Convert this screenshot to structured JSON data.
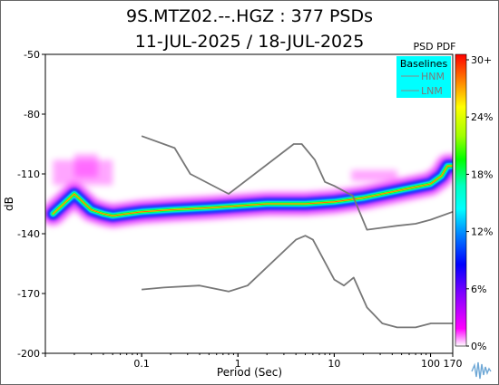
{
  "chart_data": {
    "type": "heatmap",
    "title_line1": "9S.MTZ02.--.HGZ : 377 PSDs",
    "title_line2": "11-JUL-2025 / 18-JUL-2025",
    "xlabel": "Period (Sec)",
    "ylabel": "dB",
    "x_scale": "log",
    "xlim": [
      0.01,
      170
    ],
    "ylim": [
      -200,
      -50
    ],
    "x_ticks": [
      {
        "v": 0.1,
        "label": "0.1"
      },
      {
        "v": 1,
        "label": "1"
      },
      {
        "v": 10,
        "label": "10"
      },
      {
        "v": 100,
        "label": "100"
      },
      {
        "v": 170,
        "label": "170"
      }
    ],
    "y_ticks": [
      {
        "v": -50,
        "label": "-50"
      },
      {
        "v": -80,
        "label": "-80"
      },
      {
        "v": -110,
        "label": "-110"
      },
      {
        "v": -140,
        "label": "-140"
      },
      {
        "v": -170,
        "label": "-170"
      },
      {
        "v": -200,
        "label": "-200"
      }
    ],
    "colorbar": {
      "title": "PSD PDF",
      "ticks": [
        "30+",
        "24%",
        "18%",
        "12%",
        "6%",
        "0%"
      ],
      "colors": [
        "#ff0000",
        "#ff8000",
        "#ffff00",
        "#a0ff00",
        "#00ff00",
        "#00ffc0",
        "#00ffff",
        "#0080ff",
        "#0000ff",
        "#8000ff",
        "#ff00ff",
        "#ffffff"
      ]
    },
    "legend": {
      "title": "Baselines",
      "items": [
        "HNM",
        "LNM"
      ],
      "background": "#00ffff",
      "placement": "top-right"
    },
    "series": [
      {
        "name": "HNM",
        "color": "#777777",
        "points": [
          [
            0.1,
            -91
          ],
          [
            0.22,
            -97
          ],
          [
            0.32,
            -110
          ],
          [
            0.8,
            -120
          ],
          [
            3.8,
            -95
          ],
          [
            4.6,
            -95
          ],
          [
            6.3,
            -103
          ],
          [
            8,
            -114
          ],
          [
            10,
            -116
          ],
          [
            15.6,
            -121
          ],
          [
            21.9,
            -138
          ],
          [
            31.6,
            -137
          ],
          [
            45,
            -136
          ],
          [
            70,
            -135
          ],
          [
            100,
            -133
          ],
          [
            170,
            -129
          ]
        ]
      },
      {
        "name": "LNM",
        "color": "#777777",
        "points": [
          [
            0.1,
            -168
          ],
          [
            0.17,
            -167
          ],
          [
            0.4,
            -166
          ],
          [
            0.8,
            -169
          ],
          [
            1.26,
            -166
          ],
          [
            4,
            -143
          ],
          [
            5,
            -141
          ],
          [
            6,
            -143
          ],
          [
            10,
            -163
          ],
          [
            12.6,
            -166
          ],
          [
            15.9,
            -162
          ],
          [
            21.9,
            -177
          ],
          [
            31.6,
            -185
          ],
          [
            45,
            -187
          ],
          [
            70,
            -187
          ],
          [
            101,
            -185
          ],
          [
            154,
            -185
          ],
          [
            170,
            -185
          ]
        ]
      }
    ],
    "pdf_mode": {
      "points": [
        [
          0.012,
          -130
        ],
        [
          0.02,
          -120
        ],
        [
          0.03,
          -128
        ],
        [
          0.04,
          -130
        ],
        [
          0.05,
          -131
        ],
        [
          0.07,
          -130
        ],
        [
          0.1,
          -129
        ],
        [
          0.2,
          -128
        ],
        [
          0.5,
          -127
        ],
        [
          1,
          -126
        ],
        [
          2,
          -125
        ],
        [
          5,
          -125
        ],
        [
          10,
          -124
        ],
        [
          20,
          -122
        ],
        [
          50,
          -118
        ],
        [
          100,
          -115
        ],
        [
          130,
          -111
        ],
        [
          150,
          -106
        ],
        [
          170,
          -106
        ]
      ]
    }
  }
}
